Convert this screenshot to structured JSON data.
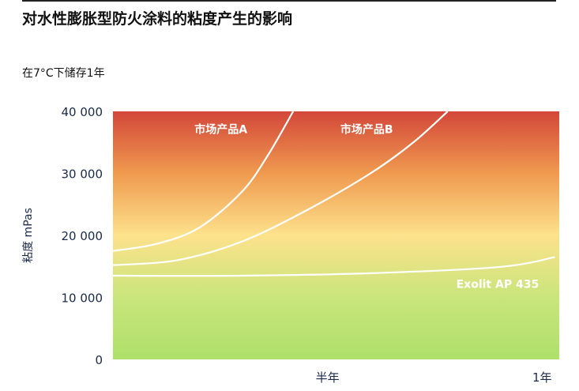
{
  "chart_data": {
    "type": "line",
    "title": "对水性膨胀型防火涂料的粘度产生的影响",
    "subtitle": "在7°C下储存1年",
    "ylabel": "粘度 mPas",
    "xlabel": "",
    "ylim": [
      0,
      40000
    ],
    "xlim": [
      0,
      1.04
    ],
    "yticks": [
      {
        "v": 0,
        "label": "0"
      },
      {
        "v": 10000,
        "label": "10 000"
      },
      {
        "v": 20000,
        "label": "20 000"
      },
      {
        "v": 30000,
        "label": "30 000"
      },
      {
        "v": 40000,
        "label": "40 000"
      }
    ],
    "xticks": [
      {
        "v": 0.5,
        "label": "半年"
      },
      {
        "v": 1,
        "label": "1年"
      }
    ],
    "background_gradient": [
      "#d3473a",
      "#ef9a4f",
      "#fde28c",
      "#c9e57c",
      "#aee06a"
    ],
    "line_color": "#ffffff",
    "series": [
      {
        "name": "市场产品A",
        "x": [
          0,
          0.1,
          0.2,
          0.3,
          0.36,
          0.42
        ],
        "y": [
          17500,
          18600,
          21200,
          27000,
          32800,
          40000
        ]
      },
      {
        "name": "市场产品B",
        "x": [
          0,
          0.15,
          0.3,
          0.45,
          0.6,
          0.7,
          0.78
        ],
        "y": [
          15200,
          16000,
          19000,
          24000,
          30000,
          35000,
          40000
        ]
      },
      {
        "name": "Exolit AP 435",
        "x": [
          0,
          0.3,
          0.6,
          0.9,
          1.03
        ],
        "y": [
          13500,
          13500,
          13900,
          14900,
          16500
        ]
      }
    ],
    "labels": [
      {
        "series": 0,
        "x": 0.19,
        "y": 36500
      },
      {
        "series": 1,
        "x": 0.53,
        "y": 36500
      },
      {
        "series": 2,
        "x": 0.8,
        "y": 11500
      }
    ]
  }
}
